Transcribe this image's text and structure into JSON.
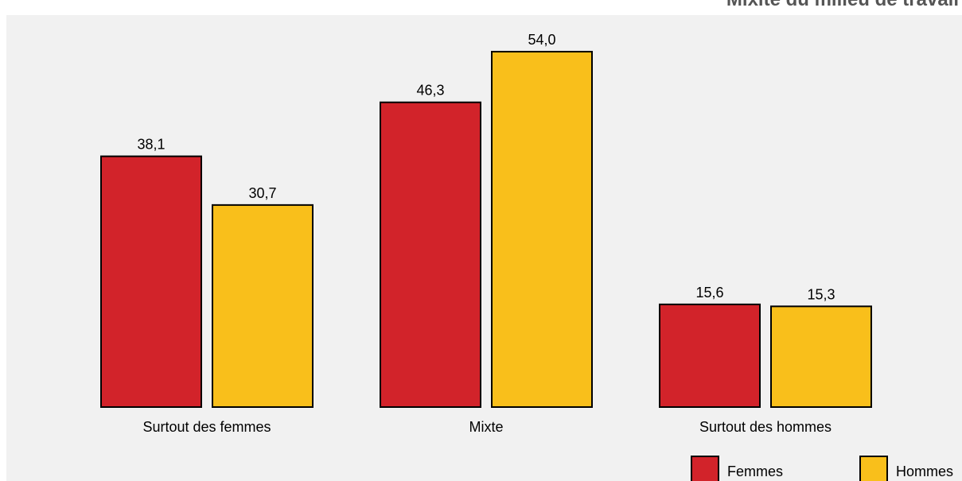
{
  "chart_data": {
    "type": "bar",
    "title": "Mixité du milieu de travail",
    "categories": [
      "Surtout des femmes",
      "Mixte",
      "Surtout des hommes"
    ],
    "series": [
      {
        "name": "Femmes",
        "color": "#d2232a",
        "values": [
          38.1,
          46.3,
          15.6
        ],
        "labels": [
          "38,1",
          "46,3",
          "15,6"
        ]
      },
      {
        "name": "Hommes",
        "color": "#f9bf1b",
        "values": [
          30.7,
          54.0,
          15.3
        ],
        "labels": [
          "30,7",
          "54,0",
          "15,3"
        ]
      }
    ],
    "ylim": [
      0,
      57.5
    ],
    "grid": false,
    "legend_position": "bottom-right",
    "xlabel": "",
    "ylabel": ""
  }
}
